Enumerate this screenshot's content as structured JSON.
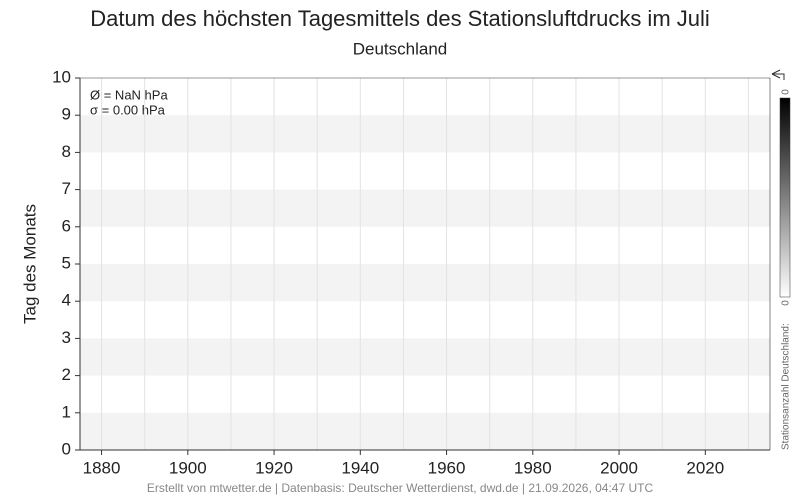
{
  "chart_data": {
    "type": "scatter",
    "title": "Datum des höchsten Tagesmittels des Stationsluftdrucks im Juli",
    "subtitle": "Deutschland",
    "y_label": "Tag des Monats",
    "annotations": [
      "Ø = NaN hPa",
      "σ = 0.00 hPa"
    ],
    "xlim": [
      1875,
      2035
    ],
    "xticks": [
      1880,
      1900,
      1920,
      1940,
      1960,
      1980,
      2000,
      2020
    ],
    "xminorticks": [
      1880,
      1890,
      1900,
      1910,
      1920,
      1930,
      1940,
      1950,
      1960,
      1970,
      1980,
      1990,
      2000,
      2010,
      2020,
      2030
    ],
    "ylim": [
      0,
      10
    ],
    "yticks": [
      0,
      1,
      2,
      3,
      4,
      5,
      6,
      7,
      8,
      9,
      10
    ],
    "banded": true,
    "colorbar": {
      "label": "Stationsanzahl Deutschland:",
      "ticks": [
        0,
        0
      ]
    },
    "footer": "Erstellt von mtwetter.de | Datenbasis: Deutscher Wetterdienst, dwd.de | 21.09.2026, 04:47 UTC"
  }
}
